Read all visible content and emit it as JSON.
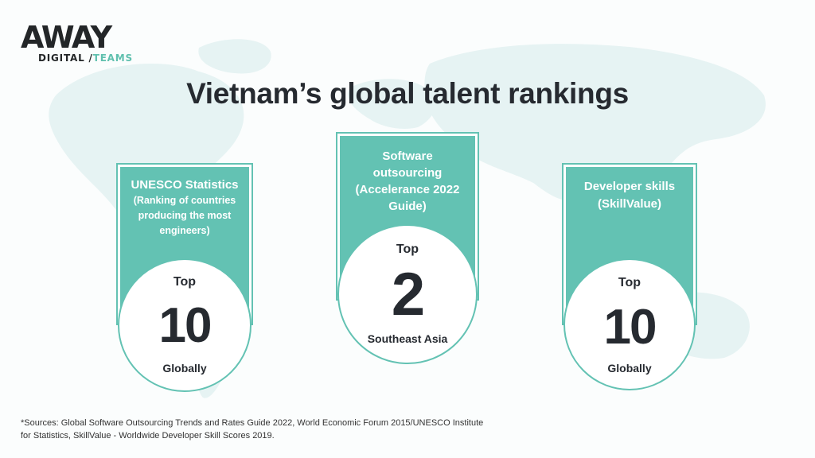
{
  "colors": {
    "accent": "#63c2b3",
    "text": "#262a30",
    "map": "#e6f3f3"
  },
  "logo": {
    "word": "AWAY",
    "digital": "DIGITAL / ",
    "teams": "TEAMS"
  },
  "title": "Vietnam’s global talent rankings",
  "cards": [
    {
      "heading": "UNESCO Statistics",
      "detail_lines": [
        "(Ranking of countries",
        "producing the most",
        "engineers)"
      ],
      "top": "Top",
      "rank": "10",
      "scope": "Globally"
    },
    {
      "heading_lines": [
        "Software",
        "outsourcing",
        "(Accelerance 2022",
        "Guide)"
      ],
      "top": "Top",
      "rank": "2",
      "scope": "Southeast Asia"
    },
    {
      "heading_lines": [
        "Developer skills",
        "(SkillValue)"
      ],
      "top": "Top",
      "rank": "10",
      "scope": "Globally"
    }
  ],
  "footnote": {
    "line1": "*Sources: Global Software Outsourcing Trends and Rates Guide 2022, World Economic Forum 2015/UNESCO Institute",
    "line2": "for Statistics, SkillValue - Worldwide Developer Skill Scores 2019."
  }
}
